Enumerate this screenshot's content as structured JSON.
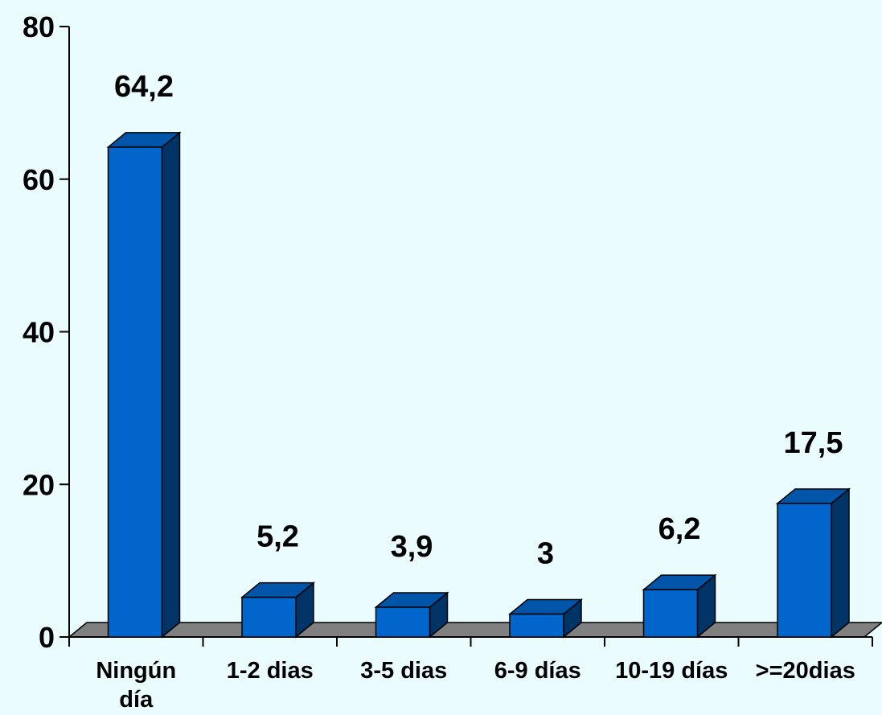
{
  "chart_data": {
    "type": "bar",
    "title": "",
    "xlabel": "",
    "ylabel": "",
    "categories": [
      [
        "Ningún",
        "día"
      ],
      [
        "1-2 dias"
      ],
      [
        "3-5 dias"
      ],
      [
        "6-9 días"
      ],
      [
        "10-19 días"
      ],
      [
        ">=20dias"
      ]
    ],
    "values": [
      64.2,
      5.2,
      3.9,
      3,
      6.2,
      17.5
    ],
    "value_labels": [
      "64,2",
      "5,2",
      "3,9",
      "3",
      "6,2",
      "17,5"
    ],
    "yticks": [
      0,
      20,
      40,
      60,
      80
    ],
    "ylim": [
      0,
      80
    ],
    "grid": false,
    "legend": "none",
    "style": "3d-column",
    "colors": {
      "bar_front": "#0066cc",
      "bar_top": "#0055a8",
      "bar_side": "#003366",
      "floor": "#808080",
      "background": "#ebfcff"
    }
  }
}
